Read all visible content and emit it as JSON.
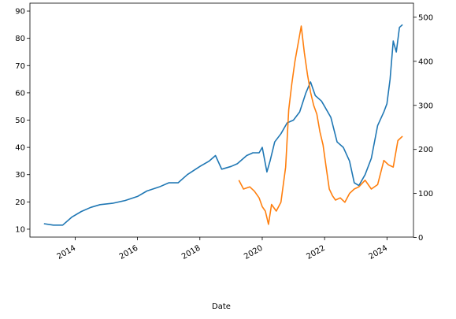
{
  "chart_data": {
    "type": "line",
    "title": "",
    "xlabel": "Date",
    "ylabel": "",
    "y2label": "",
    "grid": false,
    "legend": "none",
    "xlim": [
      2012.55,
      2024.85
    ],
    "ylim": [
      7.1,
      92.9
    ],
    "y2lim": [
      1,
      532
    ],
    "x_ticks": [
      2014,
      2016,
      2018,
      2020,
      2022,
      2024
    ],
    "x_tick_labels": [
      "2014",
      "2016",
      "2018",
      "2020",
      "2022",
      "2024"
    ],
    "y_ticks": [
      10,
      20,
      30,
      40,
      50,
      60,
      70,
      80,
      90
    ],
    "y_tick_labels": [
      "10",
      "20",
      "30",
      "40",
      "50",
      "60",
      "70",
      "80",
      "90"
    ],
    "y2_ticks": [
      0,
      100,
      200,
      300,
      400,
      500
    ],
    "y2_tick_labels": [
      "0",
      "100",
      "200",
      "300",
      "400",
      "500"
    ],
    "series": [
      {
        "axis": "left",
        "color": "#1f77b4",
        "x": [
          2013.0,
          2013.3,
          2013.6,
          2013.9,
          2014.2,
          2014.5,
          2014.8,
          2015.2,
          2015.6,
          2016.0,
          2016.3,
          2016.7,
          2017.0,
          2017.3,
          2017.6,
          2018.0,
          2018.3,
          2018.5,
          2018.7,
          2019.0,
          2019.2,
          2019.5,
          2019.7,
          2019.9,
          2020.0,
          2020.15,
          2020.25,
          2020.4,
          2020.6,
          2020.8,
          2021.0,
          2021.2,
          2021.4,
          2021.55,
          2021.7,
          2021.9,
          2022.0,
          2022.2,
          2022.4,
          2022.6,
          2022.8,
          2022.95,
          2023.1,
          2023.3,
          2023.5,
          2023.7,
          2023.9,
          2024.0,
          2024.1,
          2024.2,
          2024.3,
          2024.4,
          2024.5
        ],
        "y": [
          12,
          11.5,
          11.5,
          14.5,
          16.5,
          18,
          19,
          19.5,
          20.5,
          22,
          24,
          25.5,
          27,
          27,
          30,
          33,
          35,
          37,
          32,
          33,
          34,
          37,
          38,
          38,
          40,
          31,
          35,
          42,
          45,
          49,
          50,
          53,
          60,
          64,
          59,
          57,
          55,
          51,
          42,
          40,
          35,
          27,
          26,
          30,
          36,
          48,
          53,
          56,
          65,
          79,
          75,
          84,
          85
        ]
      },
      {
        "axis": "right",
        "color": "#ff7f0e",
        "x": [
          2019.25,
          2019.4,
          2019.6,
          2019.75,
          2019.9,
          2020.0,
          2020.1,
          2020.2,
          2020.3,
          2020.45,
          2020.6,
          2020.75,
          2020.85,
          2020.95,
          2021.05,
          2021.15,
          2021.25,
          2021.35,
          2021.45,
          2021.55,
          2021.65,
          2021.75,
          2021.85,
          2021.95,
          2022.05,
          2022.15,
          2022.25,
          2022.35,
          2022.5,
          2022.65,
          2022.8,
          2022.95,
          2023.1,
          2023.3,
          2023.5,
          2023.7,
          2023.9,
          2024.05,
          2024.2,
          2024.35,
          2024.5
        ],
        "y": [
          130,
          110,
          115,
          105,
          90,
          70,
          60,
          30,
          75,
          60,
          80,
          160,
          290,
          350,
          400,
          440,
          480,
          420,
          370,
          330,
          300,
          280,
          240,
          210,
          160,
          110,
          95,
          85,
          90,
          80,
          100,
          110,
          115,
          130,
          110,
          120,
          175,
          165,
          160,
          220,
          230
        ]
      }
    ]
  }
}
